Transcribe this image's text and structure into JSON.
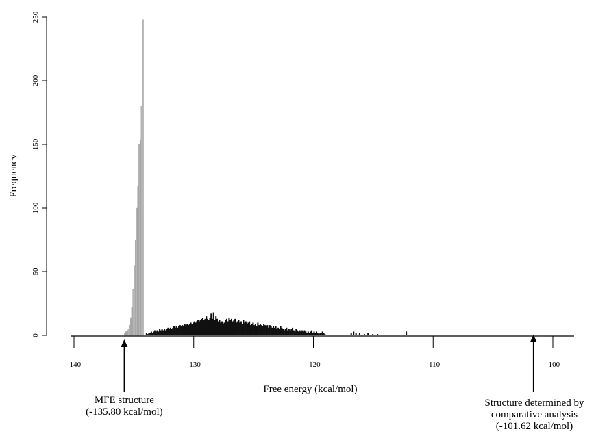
{
  "chart_data": {
    "type": "histogram",
    "xlabel": "Free energy (kcal/mol)",
    "ylabel": "Frequency",
    "xlim": [
      -140,
      -98
    ],
    "ylim": [
      0,
      250
    ],
    "xticks": [
      -140,
      -130,
      -120,
      -110,
      -100
    ],
    "yticks": [
      0,
      50,
      100,
      150,
      200,
      250
    ],
    "bin_width": 0.1,
    "series": [
      {
        "color": "#b5b5b5",
        "bins": [
          {
            "x": -135.8,
            "y": 2
          },
          {
            "x": -135.7,
            "y": 3
          },
          {
            "x": -135.6,
            "y": 3
          },
          {
            "x": -135.5,
            "y": 5
          },
          {
            "x": -135.4,
            "y": 8
          },
          {
            "x": -135.3,
            "y": 14
          },
          {
            "x": -135.2,
            "y": 22
          },
          {
            "x": -135.1,
            "y": 36
          },
          {
            "x": -135.0,
            "y": 55
          },
          {
            "x": -134.9,
            "y": 75
          },
          {
            "x": -134.8,
            "y": 100
          },
          {
            "x": -134.7,
            "y": 117
          },
          {
            "x": -134.6,
            "y": 150
          },
          {
            "x": -134.5,
            "y": 153
          },
          {
            "x": -134.4,
            "y": 180
          },
          {
            "x": -134.3,
            "y": 248
          }
        ]
      },
      {
        "color": "#111111",
        "values_from": -134.0,
        "values": [
          2,
          1,
          2,
          2,
          3,
          2,
          3,
          4,
          3,
          4,
          3,
          5,
          4,
          5,
          4,
          5,
          4,
          5,
          6,
          5,
          6,
          5,
          6,
          7,
          6,
          7,
          6,
          7,
          8,
          7,
          8,
          7,
          9,
          8,
          9,
          8,
          9,
          10,
          9,
          10,
          11,
          10,
          11,
          12,
          11,
          12,
          13,
          14,
          12,
          13,
          15,
          13,
          12,
          14,
          17,
          13,
          18,
          12,
          15,
          13,
          11,
          12,
          10,
          11,
          9,
          10,
          12,
          13,
          11,
          14,
          12,
          13,
          11,
          12,
          13,
          10,
          11,
          12,
          10,
          11,
          9,
          12,
          10,
          11,
          9,
          10,
          11,
          8,
          9,
          10,
          8,
          9,
          7,
          10,
          8,
          9,
          8,
          7,
          9,
          8,
          7,
          8,
          6,
          8,
          7,
          6,
          7,
          6,
          7,
          5,
          6,
          5,
          7,
          6,
          5,
          4,
          5,
          6,
          4,
          5,
          4,
          5,
          6,
          4,
          3,
          5,
          4,
          3,
          4,
          3,
          4,
          3,
          4,
          3,
          2,
          3,
          2,
          3,
          4,
          2,
          3,
          2,
          3,
          2,
          1,
          2,
          2,
          3,
          2,
          1
        ],
        "sparse_bins": [
          {
            "x": -116.9,
            "y": 2
          },
          {
            "x": -116.7,
            "y": 3
          },
          {
            "x": -116.5,
            "y": 2
          },
          {
            "x": -116.2,
            "y": 2
          },
          {
            "x": -115.8,
            "y": 1
          },
          {
            "x": -115.5,
            "y": 2
          },
          {
            "x": -115.1,
            "y": 1
          },
          {
            "x": -114.7,
            "y": 1
          },
          {
            "x": -112.3,
            "y": 3
          }
        ]
      }
    ],
    "annotations": [
      {
        "x": -135.8,
        "lines": [
          "MFE structure",
          "(-135.80 kcal/mol)"
        ]
      },
      {
        "x": -101.62,
        "lines": [
          "Structure determined by",
          "comparative analysis",
          "(-101.62 kcal/mol)"
        ]
      }
    ]
  }
}
